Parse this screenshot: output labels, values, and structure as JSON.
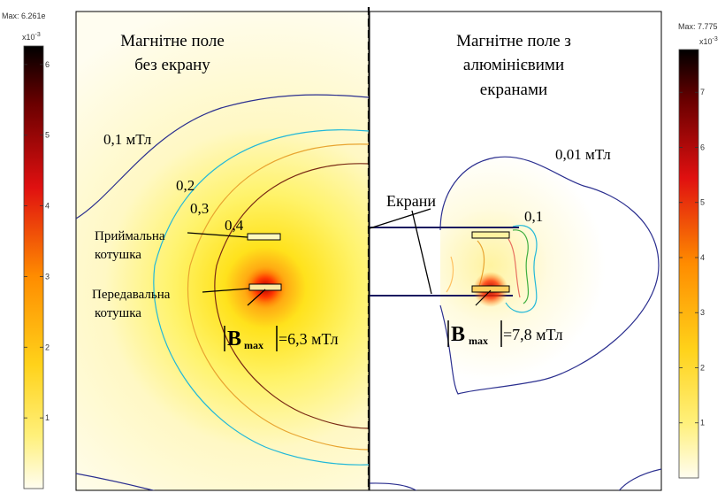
{
  "left_panel": {
    "title_line1": "Магнітне поле",
    "title_line2": "без екрану",
    "contour_labels": [
      "0,1 мТл",
      "0,2",
      "0,3",
      "0,4"
    ],
    "receiving_coil_line1": "Приймальна",
    "receiving_coil_line2": "котушка",
    "transmitting_coil_line1": "Передавальна",
    "transmitting_coil_line2": "котушка",
    "bmax_symbol": "B",
    "bmax_subscript": "max",
    "bmax_value": "=6,3  мТл"
  },
  "right_panel": {
    "title_line1": "Магнітне поле з",
    "title_line2": "алюмінієвими",
    "title_line3": "екранами",
    "contour_labels": [
      "0,01 мТл",
      "0,1"
    ],
    "screens_label": "Екрани",
    "bmax_symbol": "B",
    "bmax_subscript": "max",
    "bmax_value": "=7,8  мТл"
  },
  "left_colorbar": {
    "max_label": "Max: 6.261e",
    "exponent_base": "x10",
    "exponent_power": "-3",
    "ticks": [
      "6",
      "5",
      "4",
      "3",
      "2",
      "1"
    ],
    "tick_values": [
      6,
      5,
      4,
      3,
      2,
      1
    ],
    "max_value": 6.261
  },
  "right_colorbar": {
    "max_label": "Max: 7.775",
    "exponent_base": "x10",
    "exponent_power": "-3",
    "ticks": [
      "7",
      "6",
      "5",
      "4",
      "3",
      "2",
      "1"
    ],
    "tick_values": [
      7,
      6,
      5,
      4,
      3,
      2,
      1
    ],
    "max_value": 7.775
  },
  "colors": {
    "contour_outer": "#2b2f8f",
    "contour_cyan": "#22b8d8",
    "contour_orange": "#e8a430",
    "contour_brown": "#7a2a14",
    "coil_hot": "#c00000"
  }
}
